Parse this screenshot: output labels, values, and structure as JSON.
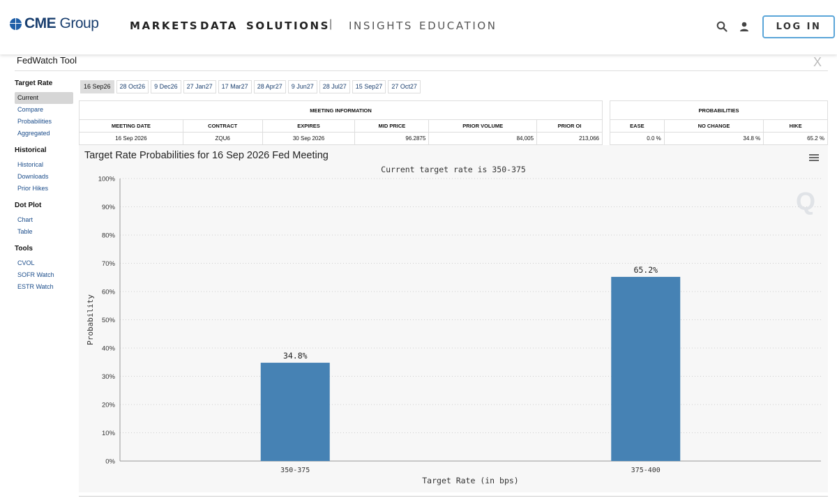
{
  "header": {
    "logo_text": "CME",
    "logo_text2": "Group",
    "nav": [
      "MARKETS",
      "DATA",
      "SOLUTIONS",
      "INSIGHTS",
      "EDUCATION"
    ],
    "nav_sep": "|",
    "login_label": "LOG IN"
  },
  "tool": {
    "title": "FedWatch Tool",
    "close_glyph": "X"
  },
  "sidebar": {
    "sections": [
      {
        "title": "Target Rate",
        "items": [
          "Current",
          "Compare",
          "Probabilities",
          "Aggregated"
        ]
      },
      {
        "title": "Historical",
        "items": [
          "Historical",
          "Downloads",
          "Prior Hikes"
        ]
      },
      {
        "title": "Dot Plot",
        "items": [
          "Chart",
          "Table"
        ]
      },
      {
        "title": "Tools",
        "items": [
          "CVOL",
          "SOFR Watch",
          "ESTR Watch"
        ]
      }
    ],
    "active_item": "Current"
  },
  "date_tabs": [
    "16 Sep26",
    "28 Oct26",
    "9 Dec26",
    "27 Jan27",
    "17 Mar27",
    "28 Apr27",
    "9 Jun27",
    "28 Jul27",
    "15 Sep27",
    "27 Oct27"
  ],
  "active_date_tab": "16 Sep26",
  "meeting_info": {
    "caption": "MEETING INFORMATION",
    "headers": [
      "MEETING DATE",
      "CONTRACT",
      "EXPIRES",
      "MID PRICE",
      "PRIOR VOLUME",
      "PRIOR OI"
    ],
    "row": [
      "16 Sep 2026",
      "ZQU6",
      "30 Sep 2026",
      "96.2875",
      "84,005",
      "213,066"
    ]
  },
  "probabilities": {
    "caption": "PROBABILITIES",
    "headers": [
      "EASE",
      "NO CHANGE",
      "HIKE"
    ],
    "row": [
      "0.0 %",
      "34.8 %",
      "65.2 %"
    ]
  },
  "chart_data": {
    "type": "bar",
    "title": "Target Rate Probabilities for 16 Sep 2026 Fed Meeting",
    "subtitle": "Current target rate is 350-375",
    "categories": [
      "350-375",
      "375-400"
    ],
    "values": [
      34.8,
      65.2
    ],
    "data_labels": [
      "34.8%",
      "65.2%"
    ],
    "xlabel": "Target Rate (in bps)",
    "ylabel": "Probability",
    "ylim": [
      0,
      100
    ],
    "yticks": [
      "0%",
      "10%",
      "20%",
      "30%",
      "40%",
      "50%",
      "60%",
      "70%",
      "80%",
      "90%",
      "100%"
    ],
    "grid": true,
    "bar_color": "#4682b4"
  }
}
